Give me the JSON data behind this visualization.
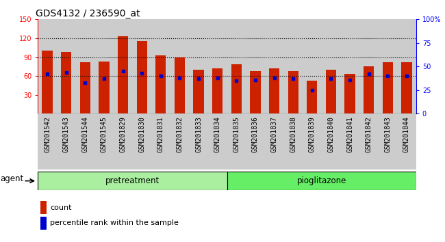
{
  "title": "GDS4132 / 236590_at",
  "samples": [
    "GSM201542",
    "GSM201543",
    "GSM201544",
    "GSM201545",
    "GSM201829",
    "GSM201830",
    "GSM201831",
    "GSM201832",
    "GSM201833",
    "GSM201834",
    "GSM201835",
    "GSM201836",
    "GSM201837",
    "GSM201838",
    "GSM201839",
    "GSM201840",
    "GSM201841",
    "GSM201842",
    "GSM201843",
    "GSM201844"
  ],
  "count_values": [
    100,
    98,
    82,
    83,
    123,
    116,
    93,
    90,
    70,
    72,
    79,
    68,
    72,
    68,
    53,
    70,
    63,
    75,
    82,
    82
  ],
  "percentile_values": [
    42,
    44,
    33,
    37,
    45,
    43,
    40,
    38,
    37,
    38,
    35,
    36,
    38,
    37,
    25,
    37,
    36,
    42,
    40,
    40
  ],
  "bar_color": "#CC2200",
  "marker_color": "#0000CC",
  "ylim_left": [
    0,
    150
  ],
  "ylim_right": [
    0,
    100
  ],
  "yticks_left": [
    30,
    60,
    90,
    120,
    150
  ],
  "yticks_right": [
    0,
    25,
    50,
    75,
    100
  ],
  "yticklabels_right": [
    "0",
    "25",
    "50",
    "75",
    "100%"
  ],
  "grid_values": [
    60,
    90,
    120
  ],
  "pretreatment_label": "pretreatment",
  "pioglitazone_label": "pioglitazone",
  "pretreatment_count": 10,
  "pioglitazone_count": 10,
  "agent_label": "agent",
  "pretreatment_color": "#AAEEA0",
  "pioglitazone_color": "#66EE66",
  "legend_count": "count",
  "legend_percentile": "percentile rank within the sample",
  "bar_width": 0.55,
  "col_bg_color": "#CCCCCC",
  "title_fontsize": 10,
  "tick_fontsize": 7,
  "label_fontsize": 8.5
}
